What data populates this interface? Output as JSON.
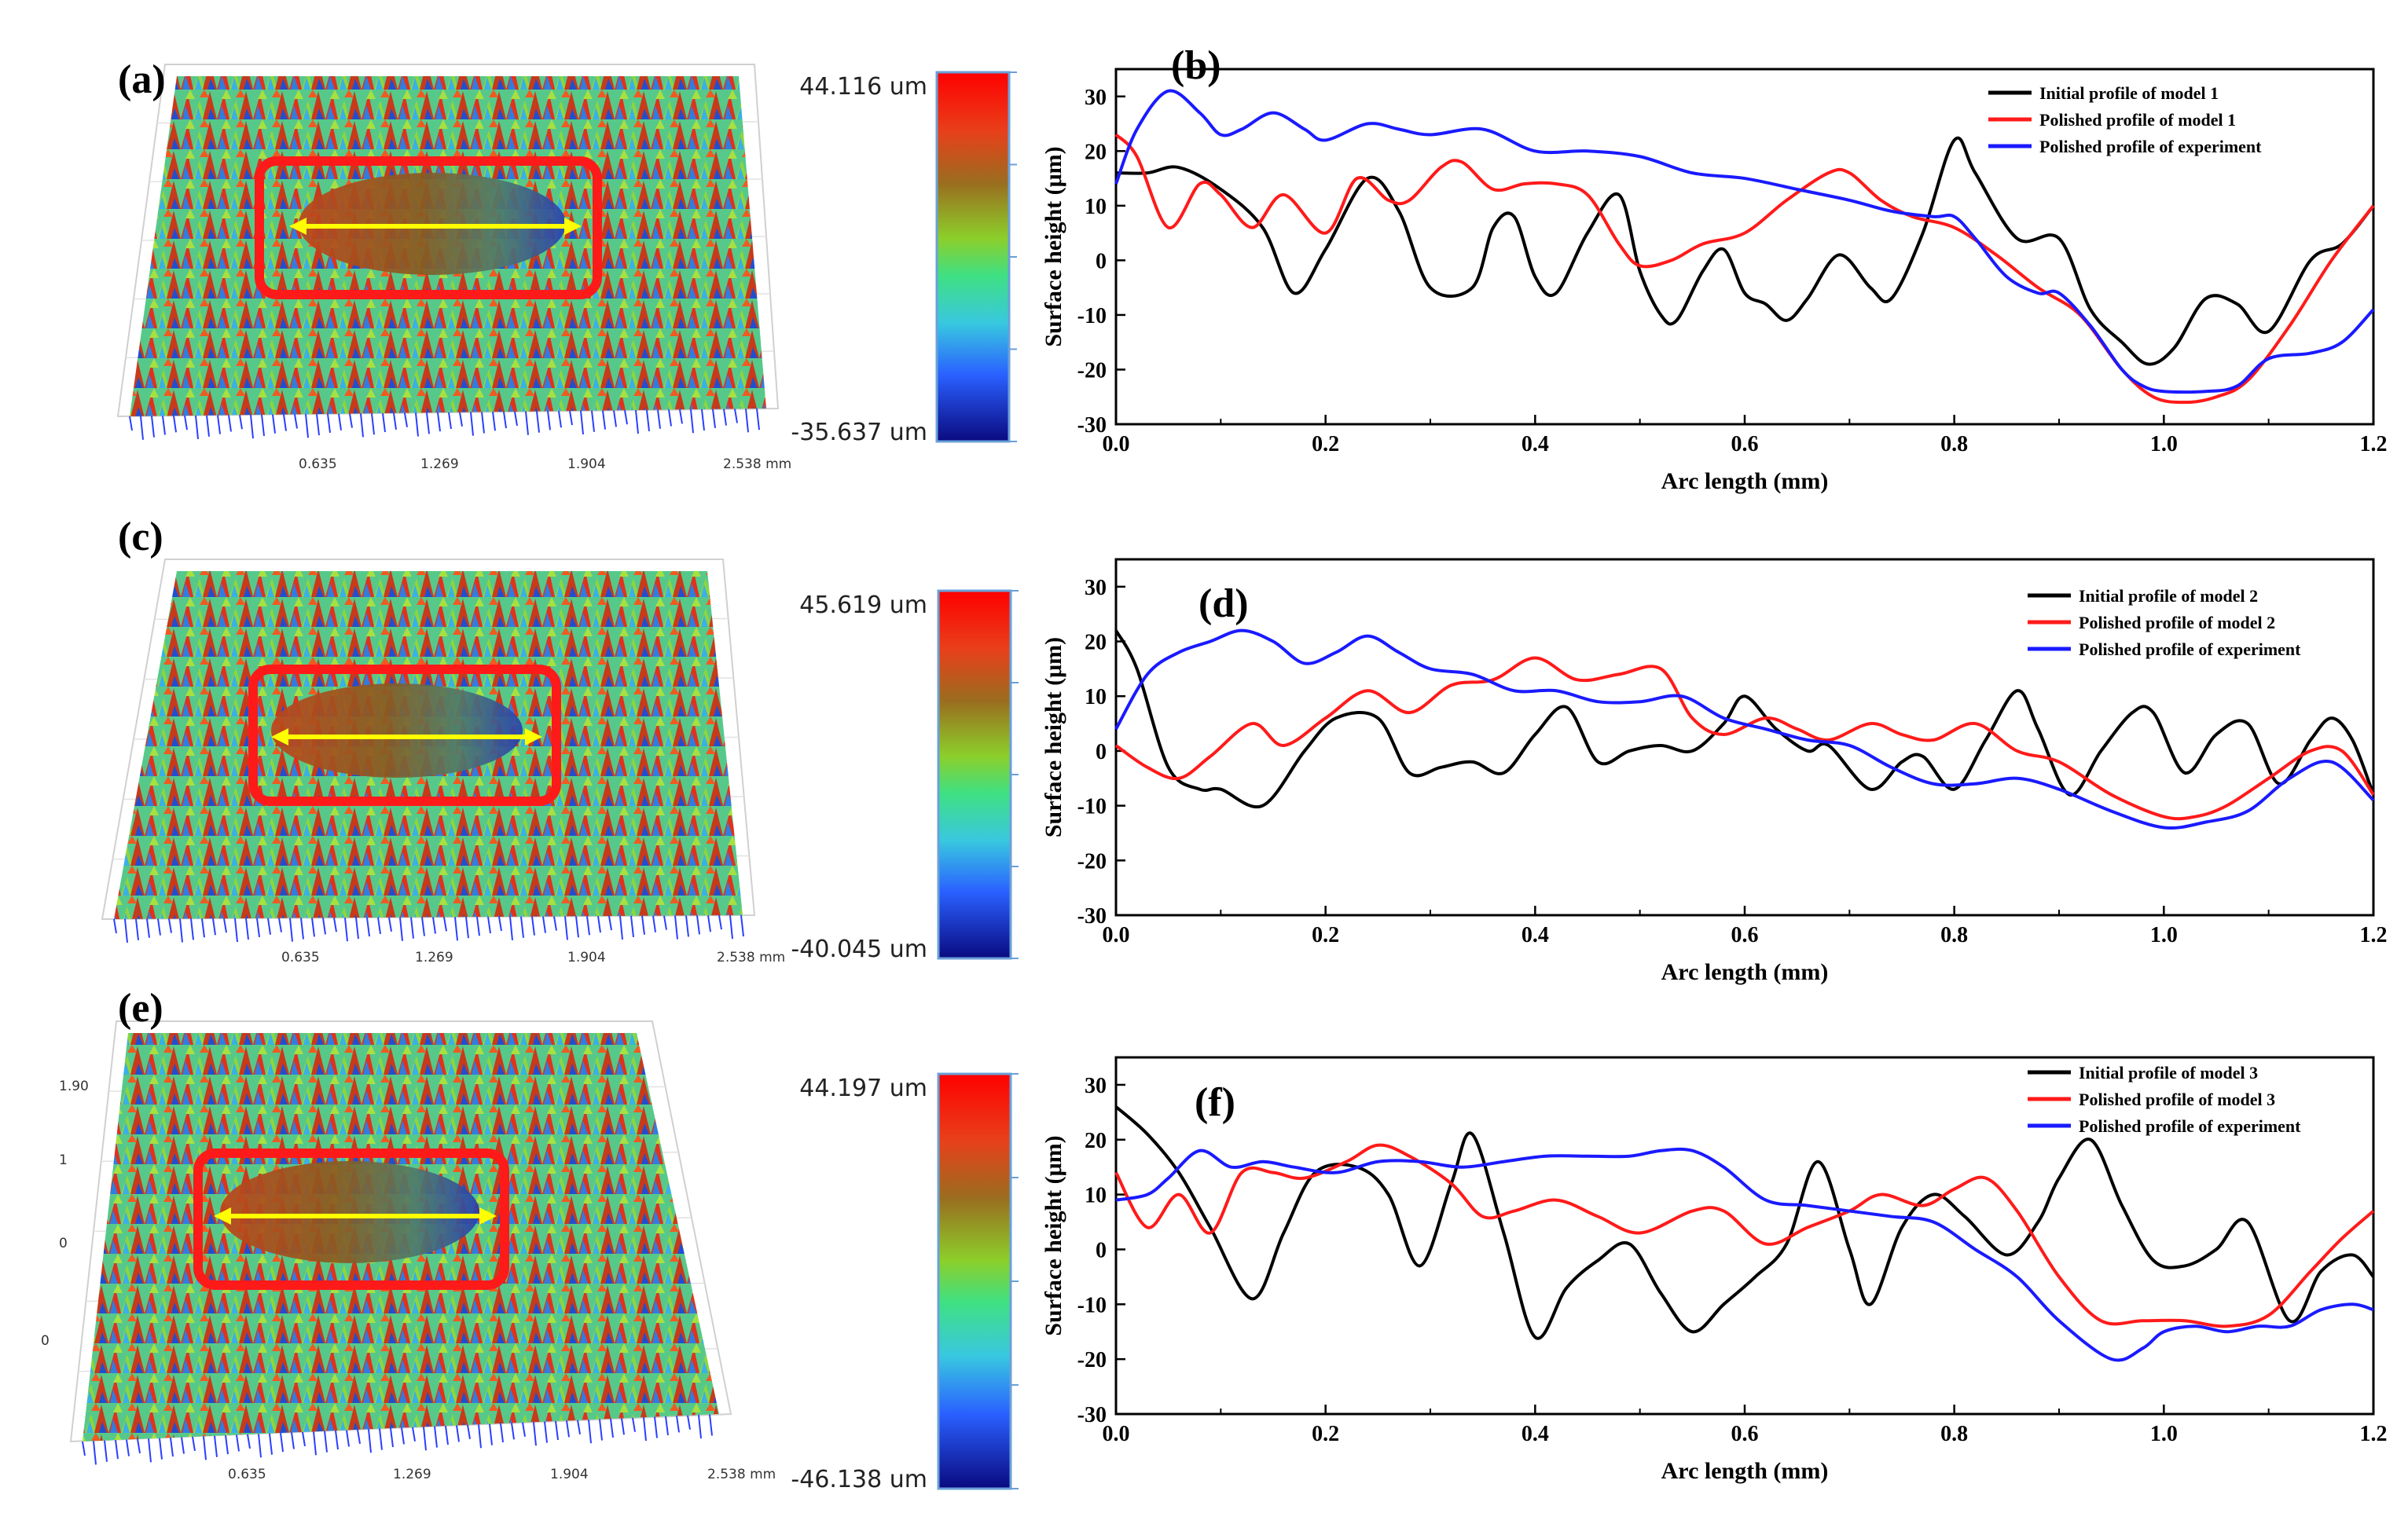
{
  "figure": {
    "surfaces": [
      {
        "label": "(a)",
        "colorbar_max": "44.116 um",
        "colorbar_min": "-35.637 um",
        "axis_ticks": [
          "0.635",
          "1.269",
          "1.904",
          "2.538 mm"
        ]
      },
      {
        "label": "(c)",
        "colorbar_max": "45.619 um",
        "colorbar_min": "-40.045 um",
        "axis_ticks": [
          "0.635",
          "1.269",
          "1.904",
          "2.538 mm"
        ]
      },
      {
        "label": "(e)",
        "colorbar_max": "44.197 um",
        "colorbar_min": "-46.138 um",
        "axis_ticks": [
          "0.635",
          "1.269",
          "1.904",
          "2.538 mm"
        ],
        "side_ticks": [
          "1.90",
          "1",
          "0",
          "0"
        ]
      }
    ],
    "colors": {
      "initial": "#000000",
      "model": "#ff1a1a",
      "experiment": "#1a1aff",
      "box": "#ff1a1a",
      "arrow": "#ffff00"
    }
  },
  "chart_data": [
    {
      "type": "line",
      "label": "(b)",
      "xlabel": "Arc length (mm)",
      "ylabel": "Surface height (μm)",
      "xlim": [
        0,
        1.2
      ],
      "ylim": [
        -30,
        35
      ],
      "xticks": [
        "0.0",
        "0.2",
        "0.4",
        "0.6",
        "0.8",
        "1.0",
        "1.2"
      ],
      "yticks": [
        "30",
        "20",
        "10",
        "0",
        "-10",
        "-20",
        "-30"
      ],
      "series": [
        {
          "name": "Initial profile of model 1",
          "color": "#000000",
          "x": [
            0,
            0.03,
            0.06,
            0.1,
            0.14,
            0.17,
            0.2,
            0.24,
            0.27,
            0.3,
            0.34,
            0.36,
            0.38,
            0.4,
            0.42,
            0.45,
            0.48,
            0.5,
            0.52,
            0.535,
            0.56,
            0.58,
            0.6,
            0.62,
            0.64,
            0.66,
            0.69,
            0.72,
            0.74,
            0.77,
            0.8,
            0.82,
            0.86,
            0.9,
            0.93,
            0.96,
            0.985,
            1.01,
            1.04,
            1.07,
            1.1,
            1.14,
            1.17,
            1.2
          ],
          "y": [
            16,
            16,
            17,
            13,
            6,
            -6,
            2,
            15,
            9,
            -5,
            -5,
            6,
            8,
            -3,
            -6,
            5,
            12,
            -2,
            -10,
            -11,
            -2,
            2,
            -6,
            -8,
            -11,
            -7,
            1,
            -5,
            -7,
            5,
            22,
            16,
            4,
            4,
            -9,
            -15,
            -19,
            -16,
            -7,
            -8,
            -13,
            0,
            3,
            10
          ]
        },
        {
          "name": "Polished profile of model 1",
          "color": "#ff1a1a",
          "x": [
            0,
            0.02,
            0.05,
            0.08,
            0.1,
            0.13,
            0.16,
            0.2,
            0.23,
            0.26,
            0.28,
            0.31,
            0.33,
            0.36,
            0.39,
            0.42,
            0.45,
            0.48,
            0.5,
            0.53,
            0.56,
            0.6,
            0.64,
            0.68,
            0.7,
            0.73,
            0.76,
            0.8,
            0.84,
            0.88,
            0.92,
            0.96,
            0.99,
            1.02,
            1.05,
            1.08,
            1.12,
            1.16,
            1.2
          ],
          "y": [
            23,
            19,
            6,
            14,
            12,
            6,
            12,
            5,
            15,
            11,
            11,
            17,
            18,
            13,
            14,
            14,
            12,
            3,
            -1,
            0,
            3,
            5,
            11,
            16,
            16,
            11,
            8,
            6,
            1,
            -5,
            -10,
            -20,
            -25,
            -26,
            -25,
            -22,
            -12,
            0,
            10
          ]
        },
        {
          "name": "Polished profile of experiment",
          "color": "#1a1aff",
          "x": [
            0,
            0.02,
            0.05,
            0.08,
            0.1,
            0.12,
            0.15,
            0.18,
            0.2,
            0.24,
            0.27,
            0.3,
            0.35,
            0.4,
            0.45,
            0.5,
            0.55,
            0.6,
            0.65,
            0.7,
            0.74,
            0.78,
            0.8,
            0.82,
            0.85,
            0.88,
            0.9,
            0.93,
            0.96,
            0.98,
            1.0,
            1.04,
            1.07,
            1.1,
            1.14,
            1.17,
            1.2
          ],
          "y": [
            14,
            24,
            31,
            27,
            23,
            24,
            27,
            24,
            22,
            25,
            24,
            23,
            24,
            20,
            20,
            19,
            16,
            15,
            13,
            11,
            9,
            8,
            8,
            4,
            -3,
            -6,
            -6,
            -12,
            -20,
            -23,
            -24,
            -24,
            -23,
            -18,
            -17,
            -15,
            -9
          ]
        }
      ]
    },
    {
      "type": "line",
      "label": "(d)",
      "xlabel": "Arc length (mm)",
      "ylabel": "Surface height (μm)",
      "xlim": [
        0,
        1.2
      ],
      "ylim": [
        -30,
        35
      ],
      "xticks": [
        "0.0",
        "0.2",
        "0.4",
        "0.6",
        "0.8",
        "1.0",
        "1.2"
      ],
      "yticks": [
        "30",
        "20",
        "10",
        "0",
        "-10",
        "-20",
        "-30"
      ],
      "series": [
        {
          "name": "Initial profile of model 2",
          "color": "#000000",
          "x": [
            0,
            0.02,
            0.05,
            0.08,
            0.1,
            0.14,
            0.18,
            0.21,
            0.25,
            0.28,
            0.31,
            0.34,
            0.37,
            0.4,
            0.43,
            0.46,
            0.49,
            0.52,
            0.55,
            0.58,
            0.6,
            0.63,
            0.66,
            0.68,
            0.72,
            0.75,
            0.77,
            0.8,
            0.83,
            0.86,
            0.88,
            0.91,
            0.94,
            0.97,
            0.99,
            1.02,
            1.05,
            1.08,
            1.11,
            1.14,
            1.16,
            1.18,
            1.2
          ],
          "y": [
            22,
            15,
            -3,
            -7,
            -7,
            -10,
            0,
            6,
            6,
            -4,
            -3,
            -2,
            -4,
            3,
            8,
            -2,
            0,
            1,
            0,
            5,
            10,
            4,
            0,
            1,
            -7,
            -2,
            -1,
            -7,
            2,
            11,
            4,
            -8,
            0,
            7,
            7,
            -4,
            3,
            5,
            -6,
            2,
            6,
            2,
            -8
          ]
        },
        {
          "name": "Polished profile of model 2",
          "color": "#ff1a1a",
          "x": [
            0,
            0.03,
            0.06,
            0.09,
            0.13,
            0.16,
            0.2,
            0.24,
            0.28,
            0.32,
            0.36,
            0.4,
            0.44,
            0.48,
            0.52,
            0.55,
            0.58,
            0.62,
            0.65,
            0.68,
            0.72,
            0.75,
            0.78,
            0.82,
            0.86,
            0.9,
            0.95,
            1.0,
            1.03,
            1.06,
            1.1,
            1.14,
            1.17,
            1.2
          ],
          "y": [
            1,
            -3,
            -5,
            -1,
            5,
            1,
            6,
            11,
            7,
            12,
            13,
            17,
            13,
            14,
            15,
            6,
            3,
            6,
            4,
            2,
            5,
            3,
            2,
            5,
            0,
            -2,
            -8,
            -12,
            -12,
            -10,
            -5,
            0,
            0,
            -8
          ]
        },
        {
          "name": "Polished profile of experiment",
          "color": "#1a1aff",
          "x": [
            0,
            0.03,
            0.06,
            0.09,
            0.12,
            0.15,
            0.18,
            0.21,
            0.24,
            0.27,
            0.3,
            0.34,
            0.38,
            0.42,
            0.46,
            0.5,
            0.54,
            0.58,
            0.62,
            0.66,
            0.7,
            0.74,
            0.78,
            0.82,
            0.86,
            0.9,
            0.95,
            1.0,
            1.04,
            1.08,
            1.12,
            1.16,
            1.2
          ],
          "y": [
            4,
            14,
            18,
            20,
            22,
            20,
            16,
            18,
            21,
            18,
            15,
            14,
            11,
            11,
            9,
            9,
            10,
            6,
            4,
            2,
            1,
            -3,
            -6,
            -6,
            -5,
            -7,
            -11,
            -14,
            -13,
            -11,
            -5,
            -2,
            -9
          ]
        }
      ]
    },
    {
      "type": "line",
      "label": "(f)",
      "xlabel": "Arc length (mm)",
      "ylabel": "Surface height (μm)",
      "xlim": [
        0,
        1.2
      ],
      "ylim": [
        -30,
        35
      ],
      "xticks": [
        "0.0",
        "0.2",
        "0.4",
        "0.6",
        "0.8",
        "1.0",
        "1.2"
      ],
      "yticks": [
        "30",
        "20",
        "10",
        "0",
        "-10",
        "-20",
        "-30"
      ],
      "series": [
        {
          "name": "Initial profile of model 3",
          "color": "#000000",
          "x": [
            0,
            0.03,
            0.06,
            0.09,
            0.13,
            0.16,
            0.19,
            0.23,
            0.26,
            0.29,
            0.32,
            0.34,
            0.37,
            0.4,
            0.43,
            0.46,
            0.49,
            0.52,
            0.55,
            0.58,
            0.61,
            0.64,
            0.67,
            0.7,
            0.72,
            0.75,
            0.78,
            0.81,
            0.85,
            0.88,
            0.9,
            0.93,
            0.96,
            0.99,
            1.02,
            1.05,
            1.08,
            1.12,
            1.15,
            1.18,
            1.2
          ],
          "y": [
            26,
            21,
            14,
            4,
            -9,
            3,
            14,
            15,
            10,
            -3,
            12,
            21,
            3,
            -16,
            -7,
            -2,
            1,
            -8,
            -15,
            -10,
            -5,
            1,
            16,
            0,
            -10,
            4,
            10,
            6,
            -1,
            5,
            13,
            20,
            8,
            -2,
            -3,
            0,
            5,
            -13,
            -4,
            -1,
            -5
          ]
        },
        {
          "name": "Polished profile of model 3",
          "color": "#ff1a1a",
          "x": [
            0,
            0.03,
            0.06,
            0.09,
            0.12,
            0.15,
            0.18,
            0.22,
            0.25,
            0.28,
            0.32,
            0.35,
            0.38,
            0.42,
            0.46,
            0.5,
            0.55,
            0.58,
            0.62,
            0.66,
            0.7,
            0.73,
            0.77,
            0.8,
            0.83,
            0.86,
            0.9,
            0.94,
            0.98,
            1.02,
            1.06,
            1.1,
            1.14,
            1.17,
            1.2
          ],
          "y": [
            14,
            4,
            10,
            3,
            14,
            14,
            13,
            16,
            19,
            17,
            12,
            6,
            7,
            9,
            6,
            3,
            7,
            7,
            1,
            4,
            7,
            10,
            8,
            11,
            13,
            7,
            -5,
            -13,
            -13,
            -13,
            -14,
            -12,
            -4,
            2,
            7
          ]
        },
        {
          "name": "Polished profile of experiment",
          "color": "#1a1aff",
          "x": [
            0,
            0.03,
            0.05,
            0.08,
            0.11,
            0.14,
            0.17,
            0.21,
            0.25,
            0.29,
            0.33,
            0.37,
            0.41,
            0.45,
            0.49,
            0.52,
            0.55,
            0.58,
            0.62,
            0.66,
            0.7,
            0.74,
            0.78,
            0.82,
            0.86,
            0.9,
            0.95,
            0.98,
            1.0,
            1.03,
            1.06,
            1.09,
            1.12,
            1.15,
            1.18,
            1.2
          ],
          "y": [
            9,
            10,
            13,
            18,
            15,
            16,
            15,
            14,
            16,
            16,
            15,
            16,
            17,
            17,
            17,
            18,
            18,
            15,
            9,
            8,
            7,
            6,
            5,
            0,
            -5,
            -13,
            -20,
            -18,
            -15,
            -14,
            -15,
            -14,
            -14,
            -11,
            -10,
            -11
          ]
        }
      ]
    }
  ]
}
